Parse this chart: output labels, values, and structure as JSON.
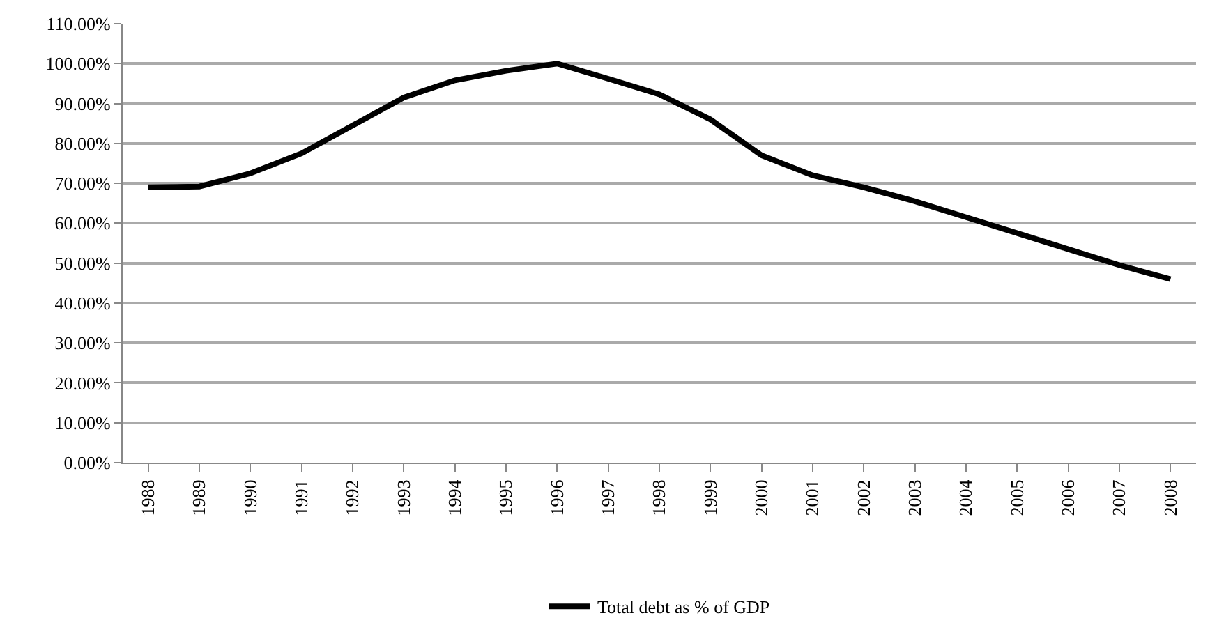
{
  "chart_data": {
    "type": "line",
    "categories": [
      "1988",
      "1989",
      "1990",
      "1991",
      "1992",
      "1993",
      "1994",
      "1995",
      "1996",
      "1997",
      "1998",
      "1999",
      "2000",
      "2001",
      "2002",
      "2003",
      "2004",
      "2005",
      "2006",
      "2007",
      "2008"
    ],
    "series": [
      {
        "name": "Total debt as % of GDP",
        "color": "#000000",
        "values": [
          69,
          69.2,
          72.5,
          77.5,
          84.5,
          91.5,
          95.8,
          98.2,
          100,
          96.2,
          92.3,
          86,
          77,
          72,
          69,
          65.5,
          61.5,
          57.5,
          53.5,
          49.5,
          46
        ]
      }
    ],
    "ylim": [
      0,
      110
    ],
    "yticks": [
      {
        "value": 0,
        "label": "0.00%"
      },
      {
        "value": 10,
        "label": "10.00%"
      },
      {
        "value": 20,
        "label": "20.00%"
      },
      {
        "value": 30,
        "label": "30.00%"
      },
      {
        "value": 40,
        "label": "40.00%"
      },
      {
        "value": 50,
        "label": "50.00%"
      },
      {
        "value": 60,
        "label": "60.00%"
      },
      {
        "value": 70,
        "label": "70.00%"
      },
      {
        "value": 80,
        "label": "80.00%"
      },
      {
        "value": 90,
        "label": "90.00%"
      },
      {
        "value": 100,
        "label": "100.00%"
      },
      {
        "value": 110,
        "label": "110.00%"
      }
    ],
    "grid": "y",
    "legend": "bottom",
    "marker": "none",
    "line_style": "solid"
  }
}
